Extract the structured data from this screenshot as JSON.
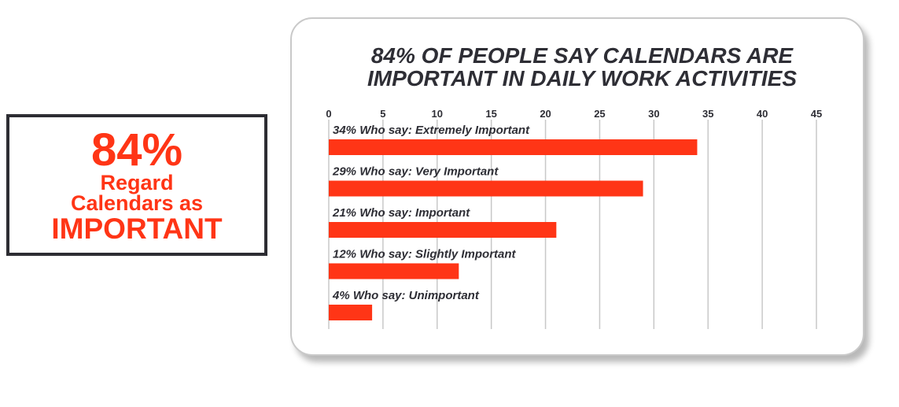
{
  "callout": {
    "percent": "84%",
    "line1": "Regard",
    "line2": "Calendars as",
    "line3": "IMPORTANT"
  },
  "colors": {
    "accent": "#ff3516",
    "text": "#2e2e35",
    "grid": "#c8c8c8"
  },
  "chart_data": {
    "type": "bar",
    "orientation": "horizontal",
    "title_lines": [
      "84% OF PEOPLE SAY CALENDARS ARE",
      "IMPORTANT IN DAILY WORK ACTIVITIES"
    ],
    "categories": [
      "34% Who say: Extremely Important",
      "29% Who say: Very Important",
      "21% Who say: Important",
      "12% Who say: Slightly Important",
      "4% Who say: Unimportant"
    ],
    "values": [
      34,
      29,
      21,
      12,
      4
    ],
    "ticks": [
      "0",
      "5",
      "10",
      "15",
      "20",
      "25",
      "30",
      "35",
      "40",
      "45"
    ],
    "xlim": [
      0,
      45
    ],
    "grid": true,
    "axis_position": "top"
  }
}
